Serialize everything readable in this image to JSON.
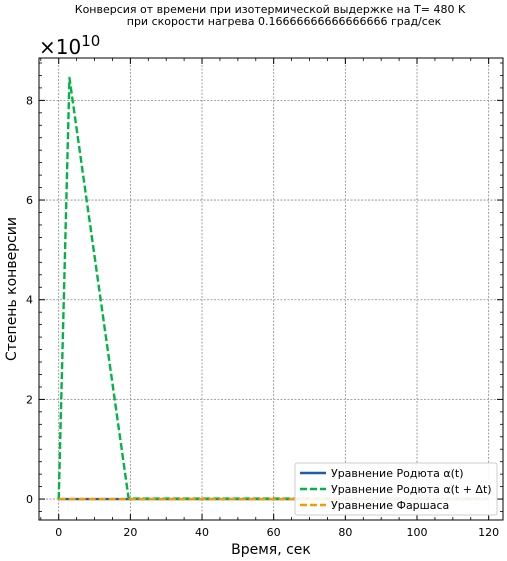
{
  "chart_data": {
    "type": "line",
    "title_line1": "Конверсия от времени при изотермической выдержке на T= 480 K",
    "title_line2": "при скорости нагрева 0.16666666666666666 град/сек",
    "xlabel": "Время, сек",
    "ylabel": "Степень конверсии",
    "y_offset_base": "×10",
    "y_offset_exponent": "10",
    "y_multiplier": 10000000000,
    "xlim": [
      -5.5,
      124
    ],
    "ylim": [
      -0.42,
      8.85
    ],
    "x_ticks": [
      0,
      20,
      40,
      60,
      80,
      100,
      120
    ],
    "x_tick_labels": [
      "0",
      "20",
      "40",
      "60",
      "80",
      "100",
      "120"
    ],
    "y_ticks": [
      0,
      2,
      4,
      6,
      8
    ],
    "y_tick_labels": [
      "0",
      "2",
      "4",
      "6",
      "8"
    ],
    "grid": true,
    "legend_position": "bottom-right",
    "series": [
      {
        "name": "Уравнение Родюта α(t)",
        "color": "#1a5fa8",
        "dash": "solid",
        "x": [
          0,
          3,
          20,
          40,
          60,
          80,
          100,
          120
        ],
        "y": [
          0,
          0,
          0,
          0,
          0,
          0,
          0,
          0
        ]
      },
      {
        "name": "Уравнение Родюта α(t + Δt)",
        "color": "#00b545",
        "dash": "dashed",
        "x": [
          0,
          3,
          19.5,
          20,
          40,
          60,
          80,
          100,
          120
        ],
        "y": [
          0,
          8.45,
          0.02,
          0.01,
          0.01,
          0.01,
          0.01,
          0.01,
          0.01
        ]
      },
      {
        "name": "Уравнение Фаршаса",
        "color": "#f59a00",
        "dash": "dashed",
        "x": [
          0,
          20,
          40,
          60,
          80,
          100,
          120
        ],
        "y": [
          0,
          0,
          0,
          0,
          0,
          0,
          0
        ]
      }
    ]
  }
}
